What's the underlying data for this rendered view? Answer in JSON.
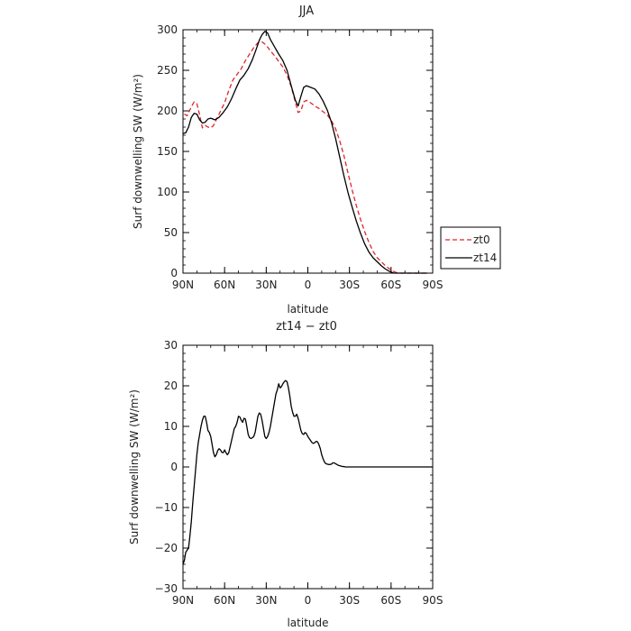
{
  "chart_data": [
    {
      "type": "line",
      "title": "JJA",
      "xlabel": "latitude",
      "ylabel": "Surf downwelling SW (W/m²)",
      "xlim": [
        90,
        -90
      ],
      "ylim": [
        0,
        300
      ],
      "x_ticks": [
        90,
        60,
        30,
        0,
        -30,
        -60,
        -90
      ],
      "x_tick_labels": [
        "90N",
        "60N",
        "30N",
        "0",
        "30S",
        "60S",
        "90S"
      ],
      "y_ticks": [
        0,
        50,
        100,
        150,
        200,
        250,
        300
      ],
      "y_tick_labels": [
        "0",
        "50",
        "100",
        "150",
        "200",
        "250",
        "300"
      ],
      "grid": false,
      "legend_position": "right-bottom-outside",
      "series": [
        {
          "name": "zt0",
          "color": "#e0242a",
          "dash": "dashed",
          "x": [
            89,
            87,
            84,
            82,
            80,
            78,
            76,
            74,
            72,
            70,
            68,
            66,
            64,
            62,
            60,
            57,
            54,
            51,
            48,
            45,
            42,
            39,
            36,
            33,
            30,
            27,
            24,
            21,
            18,
            15,
            12,
            9,
            7,
            5,
            3,
            1,
            -2,
            -5,
            -8,
            -11,
            -14,
            -17,
            -20,
            -23,
            -26,
            -29,
            -32,
            -35,
            -38,
            -41,
            -44,
            -47,
            -50,
            -53,
            -56,
            -59,
            -62,
            -65,
            -68,
            -71,
            -74,
            -77,
            -80,
            -83,
            -86
          ],
          "values": [
            196,
            194,
            205,
            211,
            209,
            195,
            179,
            182,
            180,
            179,
            182,
            189,
            196,
            203,
            210,
            225,
            238,
            245,
            252,
            262,
            270,
            278,
            284,
            285,
            281,
            274,
            268,
            261,
            254,
            244,
            230,
            211,
            198,
            200,
            211,
            213,
            210,
            206,
            203,
            199,
            195,
            188,
            178,
            163,
            145,
            123,
            102,
            83,
            66,
            51,
            38,
            27,
            19,
            14,
            9,
            5,
            2,
            0,
            0,
            0,
            0,
            0,
            0,
            0,
            0
          ]
        },
        {
          "name": "zt14",
          "color": "#000000",
          "dash": "solid",
          "x": [
            90,
            88,
            86,
            84,
            82,
            80,
            78,
            76,
            74,
            72,
            70,
            67,
            64,
            61,
            58,
            55,
            52,
            49,
            46,
            43,
            40,
            37,
            35,
            33,
            31,
            29,
            27,
            24,
            21,
            18,
            15,
            12,
            9,
            7,
            5,
            3,
            1,
            -2,
            -5,
            -8,
            -11,
            -14,
            -17,
            -20,
            -23,
            -26,
            -29,
            -32,
            -35,
            -38,
            -41,
            -44,
            -47,
            -50,
            -53,
            -56,
            -59,
            -62,
            -65,
            -68,
            -71,
            -74,
            -77,
            -80,
            -83,
            -86
          ],
          "values": [
            172,
            173,
            180,
            192,
            197,
            196,
            189,
            185,
            186,
            190,
            191,
            189,
            192,
            198,
            205,
            215,
            227,
            238,
            244,
            252,
            263,
            277,
            287,
            294,
            298,
            296,
            288,
            279,
            270,
            262,
            250,
            231,
            213,
            206,
            218,
            229,
            231,
            229,
            227,
            221,
            212,
            201,
            186,
            166,
            143,
            120,
            99,
            81,
            64,
            49,
            36,
            26,
            19,
            14,
            9,
            5,
            2,
            0,
            0,
            0,
            0,
            0,
            0,
            0,
            0,
            0
          ]
        }
      ]
    },
    {
      "type": "line",
      "title": "zt14 − zt0",
      "xlabel": "latitude",
      "ylabel": "Surf downwelling SW (W/m²)",
      "xlim": [
        90,
        -90
      ],
      "ylim": [
        -30,
        30
      ],
      "x_ticks": [
        90,
        60,
        30,
        0,
        -30,
        -60,
        -90
      ],
      "x_tick_labels": [
        "90N",
        "60N",
        "30N",
        "0",
        "30S",
        "60S",
        "90S"
      ],
      "y_ticks": [
        -30,
        -20,
        -10,
        0,
        10,
        20,
        30
      ],
      "y_tick_labels": [
        "−30",
        "−20",
        "−10",
        "0",
        "10",
        "20",
        "30"
      ],
      "grid": false,
      "series": [
        {
          "color": "#000000",
          "dash": "solid",
          "x": [
            90,
            89,
            88,
            87,
            86,
            85,
            84,
            83,
            82,
            81,
            80,
            79,
            78,
            77,
            76,
            75,
            74,
            73,
            72,
            71,
            70,
            69,
            68,
            67,
            66,
            65,
            64,
            63,
            62,
            61,
            60,
            59,
            58,
            57,
            56,
            55,
            54,
            53,
            52,
            51,
            50,
            49,
            48,
            47,
            46,
            45,
            44,
            43,
            42,
            41,
            40,
            39,
            38,
            37,
            36,
            35,
            34,
            33,
            32,
            31,
            30,
            29,
            28,
            27,
            26,
            25,
            24,
            23,
            22,
            21,
            20,
            19,
            18,
            17,
            16,
            15,
            14,
            13,
            12,
            11,
            10,
            9,
            8,
            7,
            6,
            5,
            4,
            3,
            2,
            1,
            0,
            -1,
            -2,
            -3,
            -4,
            -5,
            -6,
            -7,
            -8,
            -9,
            -10,
            -11,
            -12,
            -13,
            -14,
            -15,
            -16,
            -17,
            -18,
            -19,
            -20,
            -21,
            -22,
            -23,
            -24,
            -25,
            -26,
            -27,
            -28,
            -29,
            -30,
            -31,
            -32,
            -33,
            -34,
            -35,
            -36,
            -37,
            -38,
            -39,
            -40,
            -42,
            -44,
            -46,
            -48,
            -50,
            -52,
            -54,
            -56,
            -58,
            -60,
            -62,
            -64,
            -66,
            -68,
            -70,
            -75,
            -80,
            -85,
            -90
          ],
          "values": [
            -24,
            -23,
            -21,
            -20.5,
            -20,
            -17,
            -13.5,
            -9,
            -5,
            -1,
            3,
            6,
            8,
            10,
            11.5,
            12.5,
            12.5,
            11,
            9,
            8.5,
            7.5,
            5.5,
            3.5,
            2.5,
            3,
            4,
            4.5,
            4.2,
            3.6,
            3.5,
            4.2,
            3.5,
            3,
            3.5,
            5,
            6.5,
            8,
            9.5,
            10,
            11,
            12.5,
            12.3,
            11.5,
            11,
            12,
            11.8,
            10,
            8,
            7.2,
            7,
            7.2,
            7.5,
            8.5,
            10.5,
            12.5,
            13.3,
            13,
            11.5,
            9.5,
            7.5,
            7,
            7.5,
            8.5,
            10,
            12,
            14,
            16,
            18,
            19,
            20.5,
            19.5,
            19.8,
            20.5,
            21,
            21.3,
            21,
            19.5,
            17.5,
            15,
            13.5,
            12.5,
            12.5,
            13,
            12,
            10.5,
            9,
            8.2,
            8,
            8.5,
            8.2,
            7.5,
            7,
            6.5,
            6,
            5.8,
            6,
            6.3,
            6.2,
            5.5,
            4.5,
            3,
            2,
            1.2,
            0.8,
            0.7,
            0.6,
            0.6,
            0.7,
            1,
            1,
            0.8,
            0.6,
            0.4,
            0.3,
            0.2,
            0.1,
            0.1,
            0,
            0,
            0,
            0,
            0,
            0,
            0,
            0,
            0,
            0,
            0,
            0,
            0,
            0,
            0,
            0,
            0,
            0,
            0,
            0,
            0,
            0,
            0,
            0,
            0,
            0,
            0,
            0,
            0,
            0,
            0,
            0,
            0
          ]
        }
      ]
    }
  ]
}
